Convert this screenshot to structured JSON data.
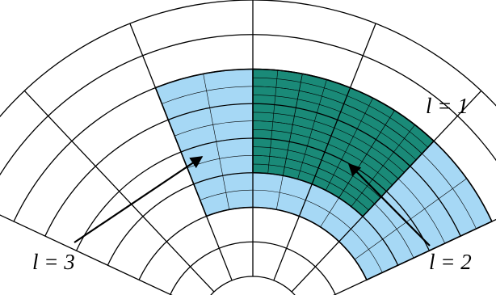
{
  "labels": {
    "l1": "l = 1",
    "l2": "l = 2",
    "l3": "l = 3"
  },
  "colors": {
    "background": "#ffffff",
    "level1_fill": "#ffffff",
    "level2_fill": "#a6d8f5",
    "level3_fill": "#1a8a78",
    "line": "#000000"
  },
  "grid": {
    "coarse_radial_divisions": 8,
    "coarse_angular_divisions": 6,
    "level2_patch": {
      "angular_cells": [
        2,
        6
      ],
      "radial_cells": [
        2,
        6
      ],
      "refinement": 2
    },
    "level3_patch": {
      "angular_cells": [
        3,
        5
      ],
      "radial_cells": [
        3,
        6
      ],
      "refinement": 4
    }
  }
}
